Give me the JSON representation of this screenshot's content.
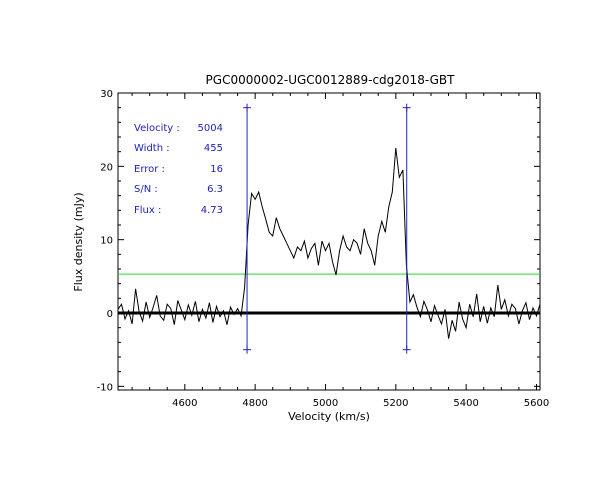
{
  "chart_data": {
    "type": "line",
    "title": "PGC0000002-UGC0012889-cdg2018-GBT",
    "xlabel": "Velocity (km/s)",
    "ylabel": "Flux density (mJy)",
    "xlim": [
      4410,
      5610
    ],
    "ylim": [
      -10.5,
      30
    ],
    "xticks": [
      4600,
      4800,
      5000,
      5200,
      5400,
      5600
    ],
    "yticks": [
      -10,
      0,
      10,
      20,
      30
    ],
    "xtick_labels": [
      "4600",
      "4800",
      "5000",
      "5200",
      "5400",
      "5600"
    ],
    "ytick_labels": [
      "-10",
      "0",
      "10",
      "20",
      "30"
    ],
    "grid": false,
    "annotations": [
      {
        "label": "Velocity :",
        "value": "5004"
      },
      {
        "label": "Width :",
        "value": "455"
      },
      {
        "label": "Error :",
        "value": "16"
      },
      {
        "label": "S/N :",
        "value": "6.3"
      },
      {
        "label": "Flux :",
        "value": "4.73"
      }
    ],
    "zero_line": 0,
    "threshold_line": 5.3,
    "markers": [
      {
        "x": 4777,
        "y_top": 28,
        "y_bottom": -5
      },
      {
        "x": 5231,
        "y_top": 28,
        "y_bottom": -5
      }
    ],
    "series": [
      {
        "x": [
          4410,
          4420,
          4430,
          4440,
          4450,
          4460,
          4470,
          4480,
          4490,
          4500,
          4510,
          4520,
          4530,
          4540,
          4550,
          4560,
          4570,
          4580,
          4590,
          4600,
          4610,
          4620,
          4630,
          4640,
          4650,
          4660,
          4670,
          4680,
          4690,
          4700,
          4710,
          4720,
          4730,
          4740,
          4750,
          4760,
          4770,
          4780,
          4790,
          4800,
          4810,
          4820,
          4830,
          4840,
          4850,
          4860,
          4870,
          4880,
          4890,
          4900,
          4910,
          4920,
          4930,
          4940,
          4950,
          4960,
          4970,
          4980,
          4990,
          5000,
          5010,
          5020,
          5030,
          5040,
          5050,
          5060,
          5070,
          5080,
          5090,
          5100,
          5110,
          5120,
          5130,
          5140,
          5150,
          5160,
          5170,
          5180,
          5190,
          5200,
          5210,
          5220,
          5230,
          5240,
          5250,
          5260,
          5270,
          5280,
          5290,
          5300,
          5310,
          5320,
          5330,
          5340,
          5350,
          5360,
          5370,
          5380,
          5390,
          5400,
          5410,
          5420,
          5430,
          5440,
          5450,
          5460,
          5470,
          5480,
          5490,
          5500,
          5510,
          5520,
          5530,
          5540,
          5550,
          5560,
          5570,
          5580,
          5590,
          5600,
          5610
        ],
        "values": [
          0.5,
          1.2,
          -0.8,
          0.3,
          -1.5,
          3.3,
          0.2,
          -1.1,
          1.5,
          -0.6,
          0.8,
          2.4,
          -0.4,
          -1.0,
          1.2,
          0.6,
          -1.6,
          1.7,
          0.4,
          -0.9,
          1.1,
          -0.3,
          1.6,
          -1.2,
          0.5,
          -0.7,
          1.4,
          -1.3,
          0.9,
          -0.5,
          0.3,
          -1.6,
          0.8,
          -0.2,
          0.6,
          -0.4,
          3.5,
          12.0,
          16.3,
          15.5,
          16.5,
          14.5,
          12.8,
          11.0,
          10.5,
          13.0,
          11.5,
          10.5,
          9.5,
          8.5,
          7.5,
          9.0,
          8.5,
          9.8,
          7.5,
          8.8,
          9.5,
          6.5,
          9.8,
          8.5,
          9.5,
          7.0,
          5.2,
          8.5,
          10.5,
          9.0,
          8.5,
          10.0,
          9.5,
          8.0,
          11.5,
          9.5,
          8.5,
          6.5,
          10.5,
          12.5,
          11.0,
          14.5,
          16.5,
          22.5,
          18.5,
          19.5,
          6.5,
          1.5,
          2.5,
          0.8,
          -0.5,
          1.6,
          0.4,
          -1.2,
          1.0,
          -0.3,
          -1.5,
          0.5,
          -3.5,
          -1.0,
          -2.5,
          1.5,
          -0.8,
          -2.0,
          1.2,
          -0.5,
          2.6,
          -1.2,
          0.9,
          -1.4,
          0.7,
          -0.5,
          3.8,
          0.5,
          1.8,
          -0.4,
          1.2,
          0.6,
          -1.5,
          0.3,
          1.4,
          -0.9,
          0.7,
          -0.4,
          1.2
        ]
      }
    ]
  },
  "colors": {
    "spectrum": "#000000",
    "zero_line": "#000000",
    "threshold": "#22dd22",
    "markers": "#2222bb",
    "annotation_text": "#2222bb",
    "axes": "#000000"
  }
}
